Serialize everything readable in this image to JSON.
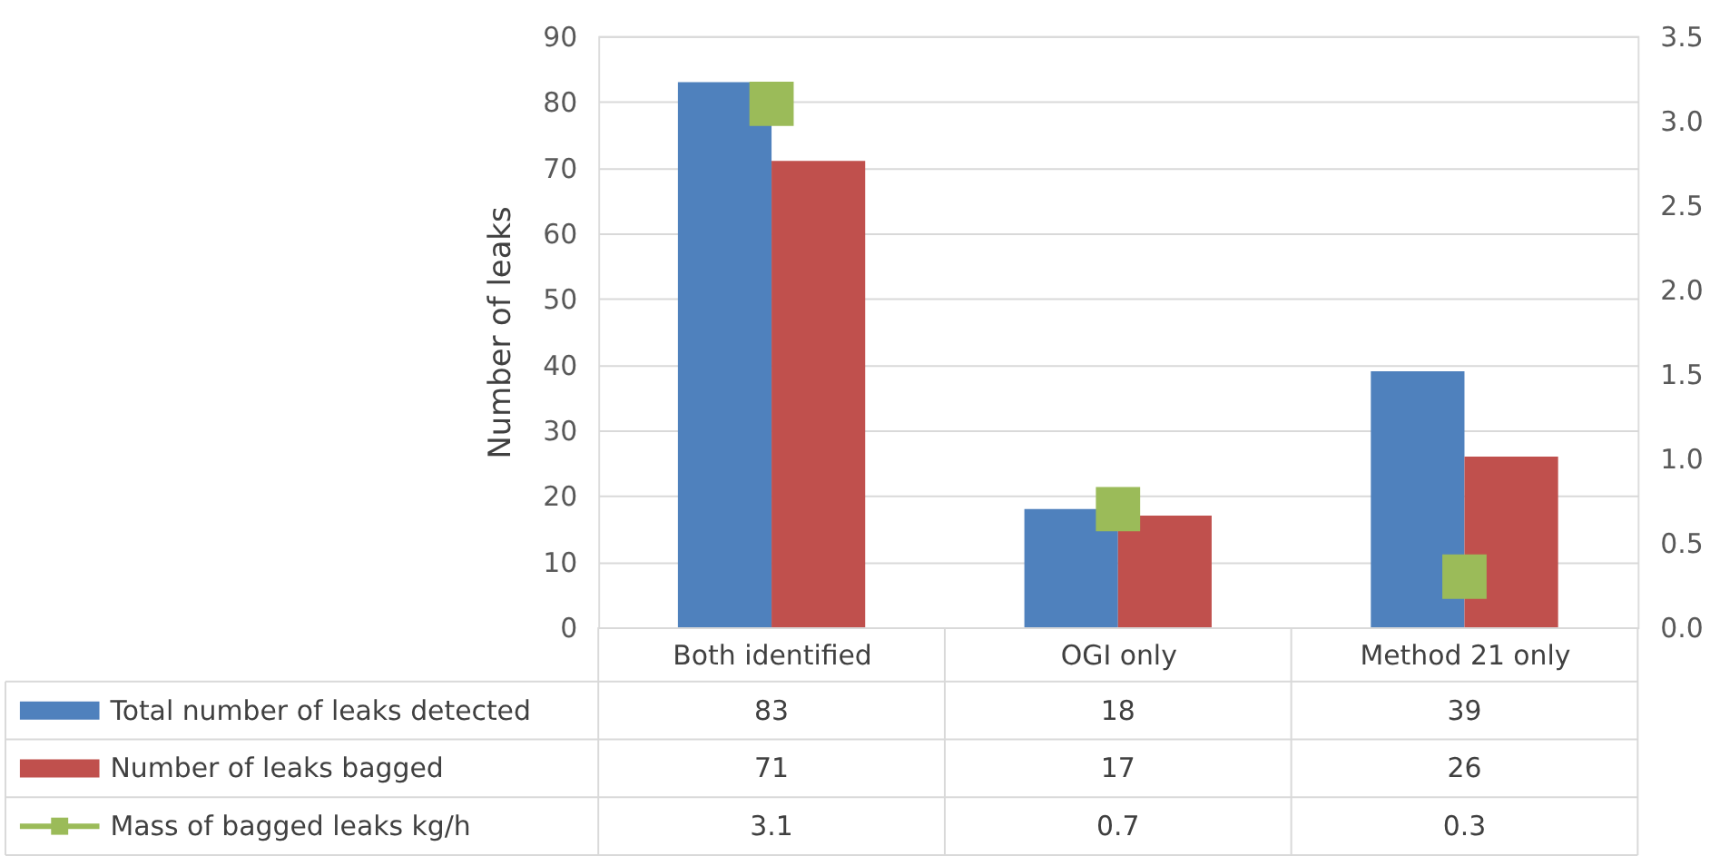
{
  "chart_data": {
    "type": "bar",
    "ylabel": "Number of leaks",
    "categories": [
      "Both identified",
      "OGI only",
      "Method 21 only"
    ],
    "series": [
      {
        "name": "Total number of leaks detected",
        "type": "bar",
        "color": "#4f81bd",
        "values": [
          83,
          18,
          39
        ]
      },
      {
        "name": "Number of leaks bagged",
        "type": "bar",
        "color": "#c0504d",
        "values": [
          71,
          17,
          26
        ]
      },
      {
        "name": "Mass of bagged leaks kg/h",
        "type": "scatter",
        "marker": "square",
        "axis": "y2",
        "color": "#9bbb59",
        "values": [
          3.1,
          0.7,
          0.3
        ]
      }
    ],
    "ylim": [
      0,
      90
    ],
    "yticks": [
      0,
      10,
      20,
      30,
      40,
      50,
      60,
      70,
      80,
      90
    ],
    "y2lim": [
      0,
      3.5
    ],
    "y2ticks": [
      {
        "value": 0,
        "label": "0.0"
      },
      {
        "value": 0.5,
        "label": "0.5"
      },
      {
        "value": 1,
        "label": "1.0"
      },
      {
        "value": 1.5,
        "label": "1.5"
      },
      {
        "value": 2,
        "label": "2.0"
      },
      {
        "value": 2.5,
        "label": "2.5"
      },
      {
        "value": 3,
        "label": "3.0"
      },
      {
        "value": 3.5,
        "label": "3.5"
      }
    ],
    "grid": "y",
    "data_labels": true,
    "legend": "bottom left"
  }
}
